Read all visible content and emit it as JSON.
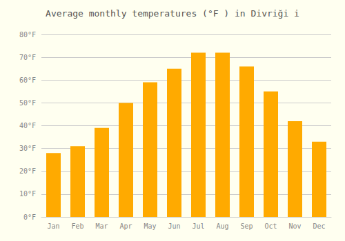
{
  "chart_data": {
    "type": "bar",
    "title": "Average monthly temperatures (°F ) in Divriği i",
    "categories": [
      "Jan",
      "Feb",
      "Mar",
      "Apr",
      "May",
      "Jun",
      "Jul",
      "Aug",
      "Sep",
      "Oct",
      "Nov",
      "Dec"
    ],
    "values": [
      28,
      31,
      39,
      50,
      59,
      65,
      72,
      72,
      66,
      55,
      42,
      33
    ],
    "color": "#FFAA00",
    "ylim": [
      0,
      80
    ],
    "yticks": [
      {
        "value": 0,
        "label": "0°F"
      },
      {
        "value": 10,
        "label": "10°F"
      },
      {
        "value": 20,
        "label": "20°F"
      },
      {
        "value": 30,
        "label": "30°F"
      },
      {
        "value": 40,
        "label": "40°F"
      },
      {
        "value": 50,
        "label": "50°F"
      },
      {
        "value": 60,
        "label": "60°F"
      },
      {
        "value": 70,
        "label": "70°F"
      },
      {
        "value": 80,
        "label": "80°F"
      }
    ],
    "grid": true
  }
}
